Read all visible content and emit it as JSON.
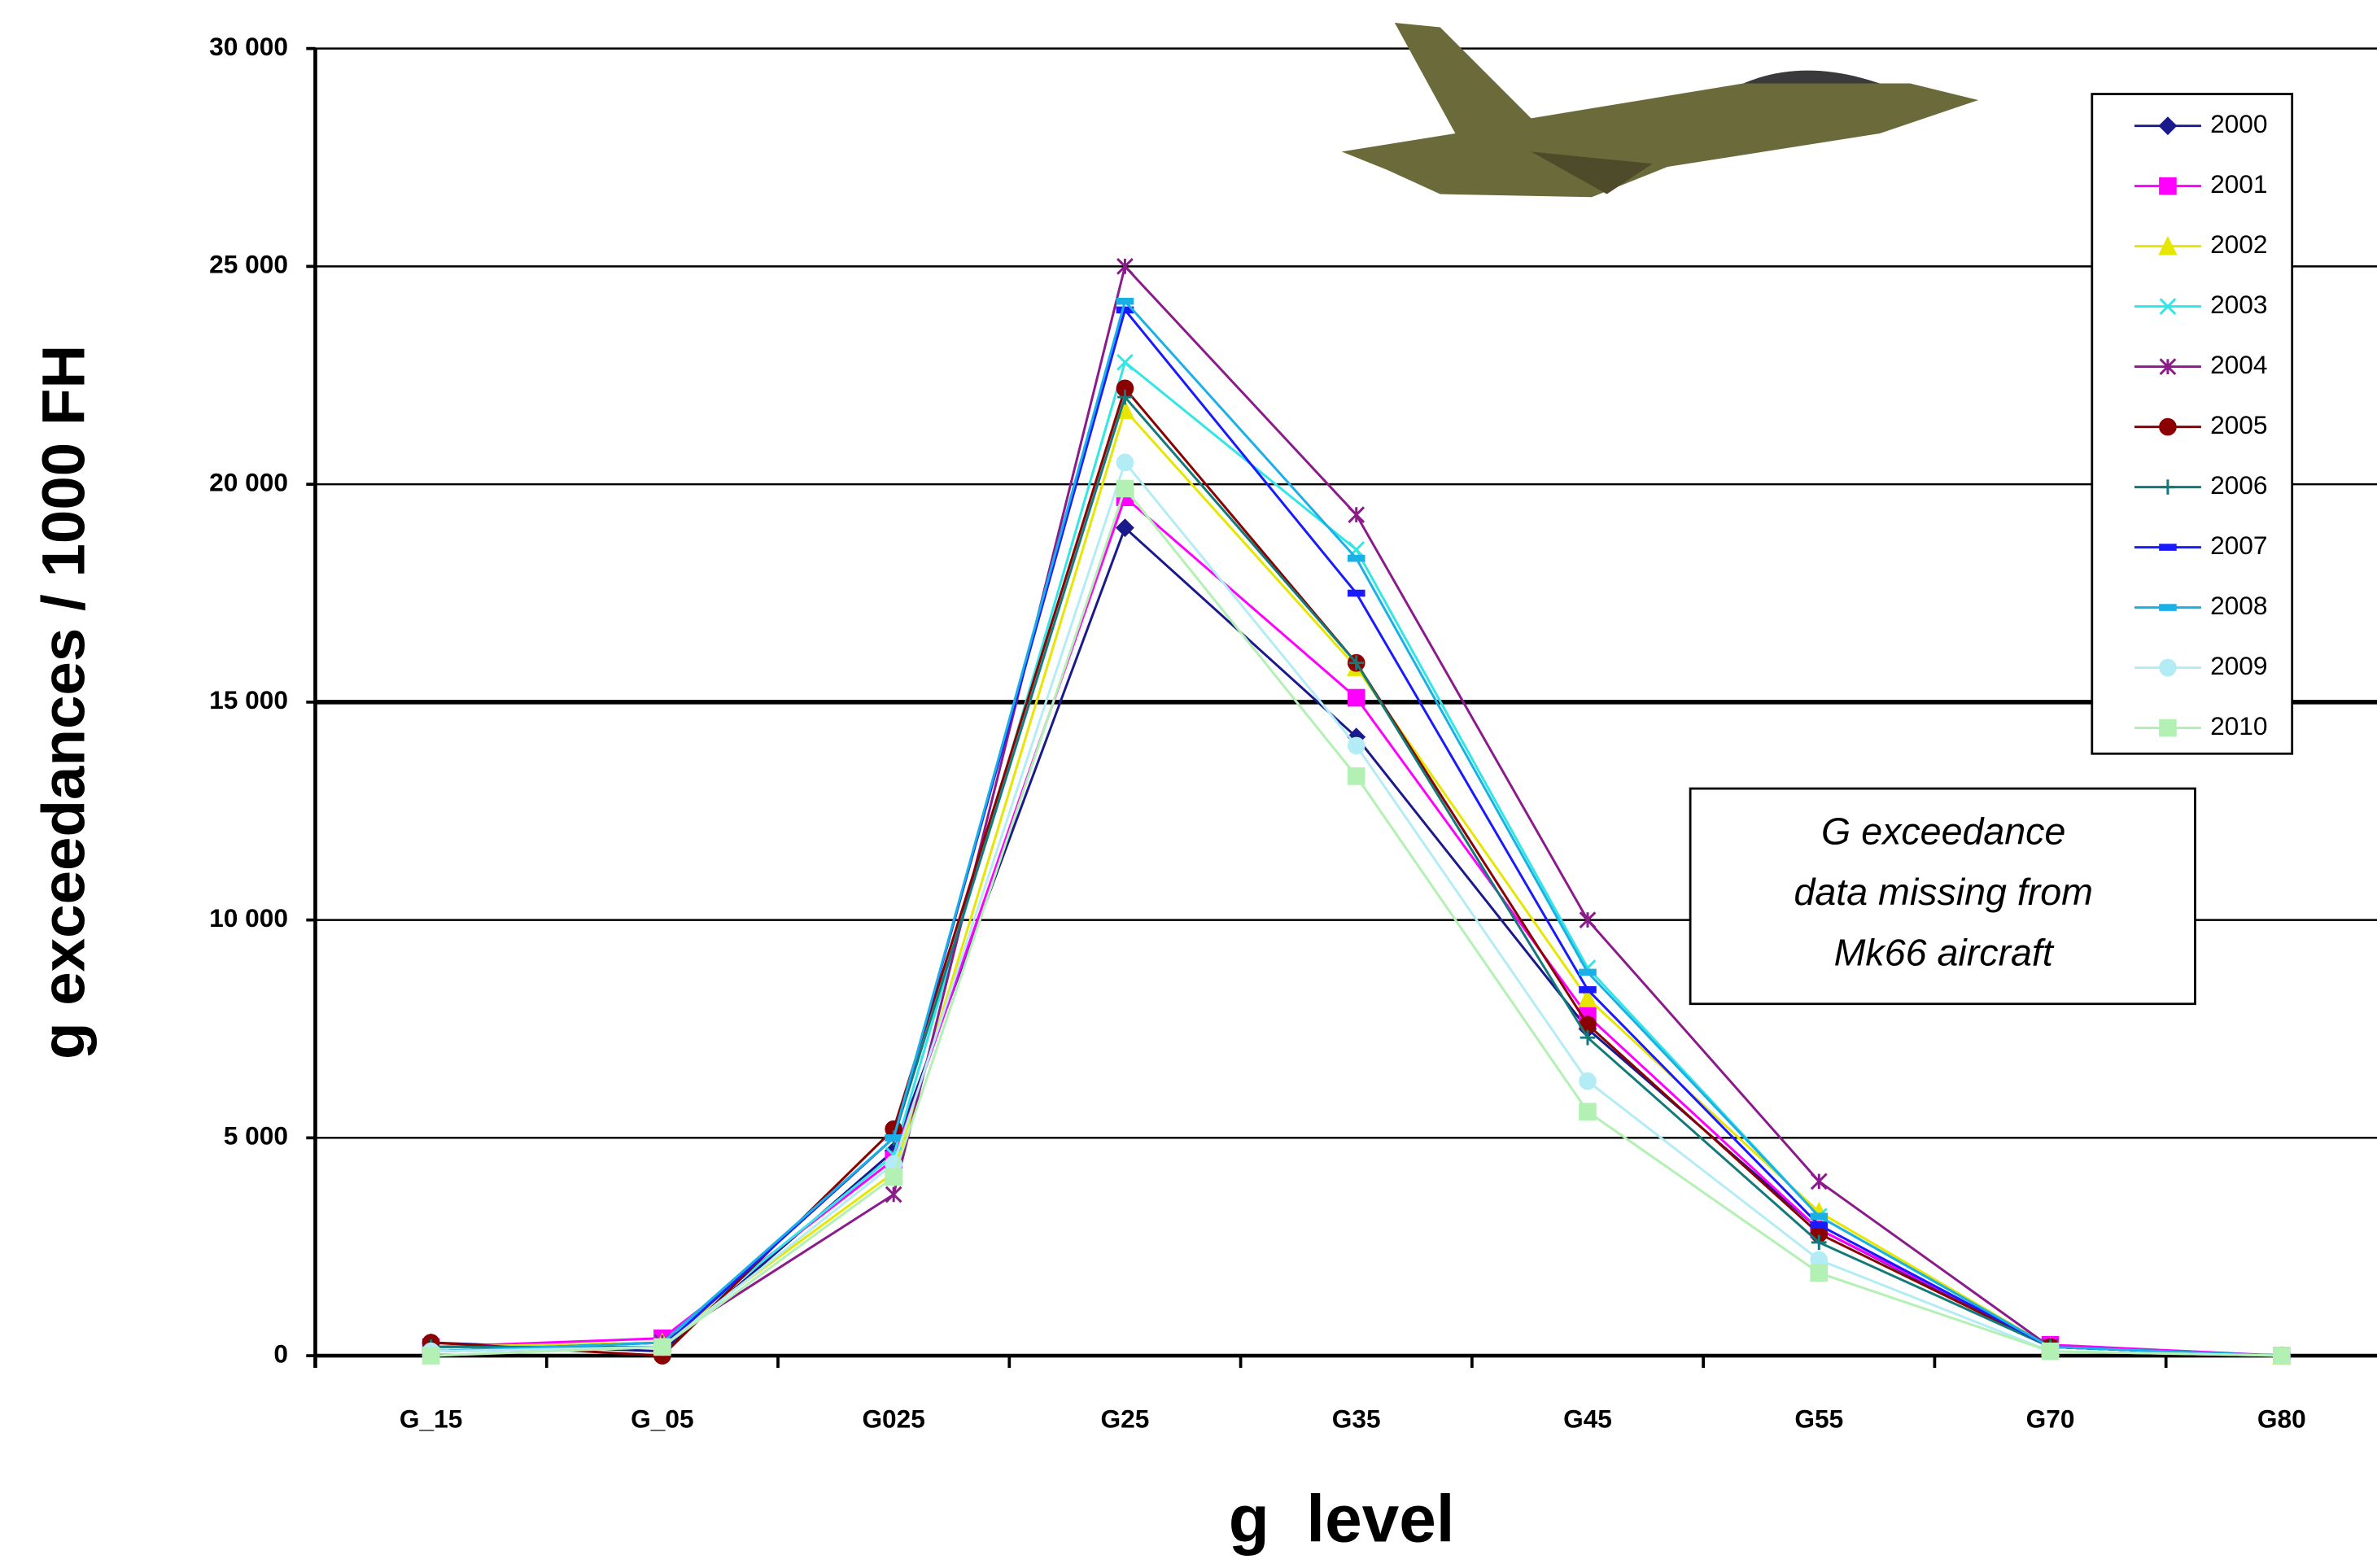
{
  "chart_data": {
    "type": "line",
    "x_label": "g  level",
    "y_label": "g exceedances / 1000 FH",
    "categories": [
      "G_15",
      "G_05",
      "G025",
      "G25",
      "G35",
      "G45",
      "G55",
      "G70",
      "G80"
    ],
    "ylim": [
      0,
      30000
    ],
    "yticks": [
      0,
      {
        "value": 5000,
        "label": "5 000"
      },
      {
        "value": 10000,
        "label": "10 000"
      },
      {
        "value": 15000,
        "label": "15 000"
      },
      {
        "value": 20000,
        "label": "20 000"
      },
      {
        "value": 25000,
        "label": "25 000"
      },
      {
        "value": 30000,
        "label": "30 000"
      }
    ],
    "grid": true,
    "legend": "upper right",
    "annotation": [
      "G exceedance",
      "data missing from",
      "Mk66 aircraft"
    ],
    "series": [
      {
        "name": "2000",
        "color": "#1a1a8c",
        "marker": "diamond",
        "values": [
          300,
          100,
          4700,
          19000,
          14200,
          7500,
          2900,
          200,
          0
        ]
      },
      {
        "name": "2001",
        "color": "#ff00ff",
        "marker": "square",
        "values": [
          200,
          400,
          4500,
          19700,
          15100,
          7800,
          2900,
          250,
          0
        ]
      },
      {
        "name": "2002",
        "color": "#e6e600",
        "marker": "triangle",
        "values": [
          200,
          300,
          4200,
          21700,
          15800,
          8200,
          3300,
          200,
          0
        ]
      },
      {
        "name": "2003",
        "color": "#33e6e6",
        "marker": "x",
        "values": [
          100,
          300,
          4600,
          22800,
          18500,
          8900,
          3200,
          200,
          0
        ]
      },
      {
        "name": "2004",
        "color": "#8b1a8b",
        "marker": "star",
        "values": [
          100,
          300,
          3700,
          25000,
          19300,
          10000,
          4000,
          200,
          0
        ]
      },
      {
        "name": "2005",
        "color": "#8b0000",
        "marker": "circle",
        "values": [
          300,
          0,
          5200,
          22200,
          15900,
          7600,
          2800,
          200,
          0
        ]
      },
      {
        "name": "2006",
        "color": "#137a7a",
        "marker": "plus",
        "values": [
          200,
          200,
          5000,
          22000,
          15900,
          7300,
          2600,
          200,
          0
        ]
      },
      {
        "name": "2007",
        "color": "#1a1aff",
        "marker": "dash",
        "values": [
          100,
          200,
          5000,
          24000,
          17500,
          8400,
          3000,
          200,
          0
        ]
      },
      {
        "name": "2008",
        "color": "#1ab0e6",
        "marker": "dash",
        "values": [
          100,
          300,
          5000,
          24200,
          18300,
          8800,
          3200,
          200,
          0
        ]
      },
      {
        "name": "2009",
        "color": "#b3ecf5",
        "marker": "circle",
        "values": [
          100,
          200,
          4400,
          20500,
          14000,
          6300,
          2200,
          100,
          0
        ]
      },
      {
        "name": "2010",
        "color": "#b3f0b3",
        "marker": "square",
        "values": [
          0,
          200,
          4100,
          19900,
          13300,
          5600,
          1900,
          100,
          0
        ]
      }
    ]
  }
}
